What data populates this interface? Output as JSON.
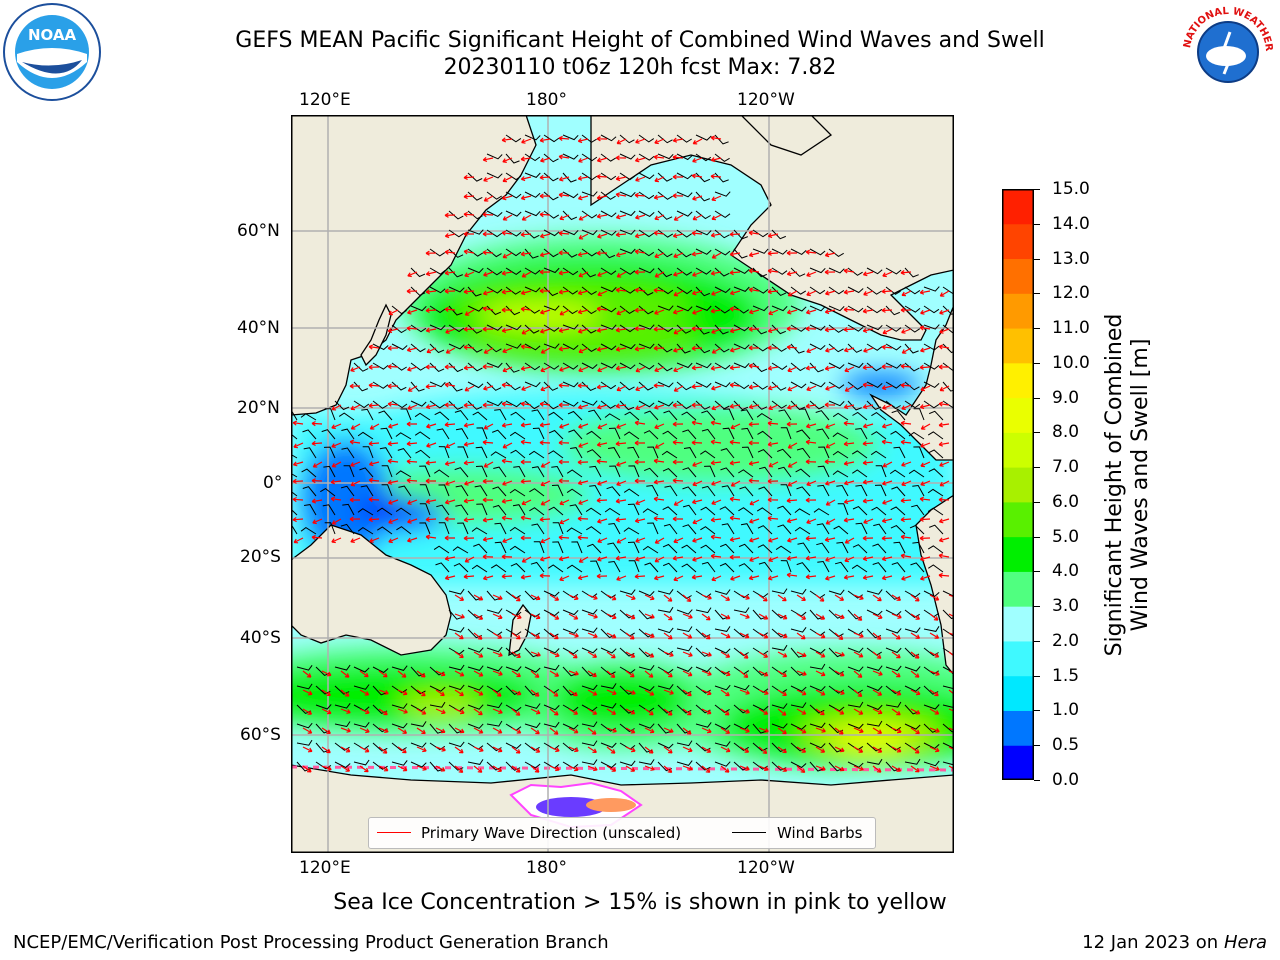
{
  "title": {
    "line1": "GEFS MEAN Pacific Significant Height of Combined Wind Waves and Swell",
    "line2": "20230110 t06z 120h fcst   Max: 7.82"
  },
  "logos": {
    "left": {
      "icon": "noaa-logo",
      "text": "NOAA"
    },
    "right": {
      "icon": "nws-logo",
      "text": "NATIONAL WEATHER SERVICE"
    }
  },
  "map": {
    "lon_labels_top": [
      "120°E",
      "180°",
      "120°W"
    ],
    "lon_labels_bottom": [
      "120°E",
      "180°",
      "120°W"
    ],
    "lat_labels": [
      "60°N",
      "40°N",
      "20°N",
      "0°",
      "20°S",
      "40°S",
      "60°S"
    ],
    "colors": {
      "land": "#efecdc",
      "coast": "#000000",
      "grid": "#b0b0b0"
    }
  },
  "legend": {
    "wave_label": "Primary Wave Direction (unscaled)",
    "wave_color": "#ff0000",
    "barb_label": "Wind Barbs",
    "barb_color": "#000000"
  },
  "colorbar": {
    "label_line1": "Significant Height of Combined",
    "label_line2": "Wind Waves and Swell [m]",
    "ticks": [
      "15.0",
      "14.0",
      "13.0",
      "12.0",
      "11.0",
      "10.0",
      "9.0",
      "8.0",
      "7.0",
      "6.0",
      "5.0",
      "4.0",
      "3.0",
      "2.0",
      "1.5",
      "1.0",
      "0.5",
      "0.0"
    ],
    "colors": [
      "#0000ff",
      "#0077ff",
      "#00e8ff",
      "#3ff9ff",
      "#a0ffff",
      "#50ff80",
      "#00ef00",
      "#59f000",
      "#a8f000",
      "#ccff00",
      "#eaff00",
      "#fff000",
      "#ffc000",
      "#ff9a00",
      "#ff7000",
      "#ff4400",
      "#ff2000",
      "#ff0000"
    ]
  },
  "note": "Sea Ice Concentration > 15% is shown in pink to yellow",
  "footer": {
    "left": "NCEP/EMC/Verification Post Processing Product Generation Branch",
    "right_date": "12 Jan 2023 on",
    "right_host": "Hera"
  }
}
